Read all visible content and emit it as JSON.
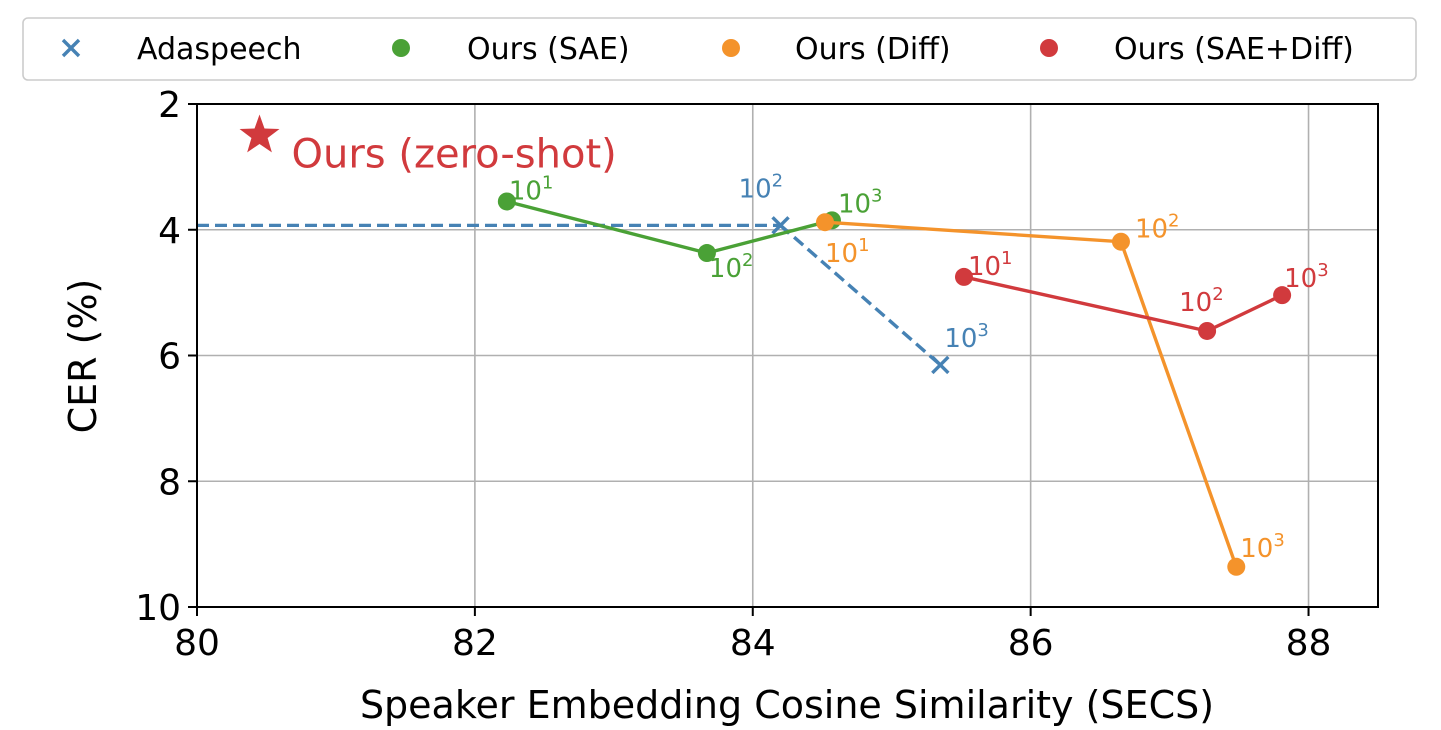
{
  "chart_data": {
    "type": "scatter",
    "xlabel": "Speaker Embedding Cosine Similarity (SECS)",
    "ylabel": "CER (%)",
    "xlim": [
      80,
      88.5
    ],
    "ylim": [
      10,
      2
    ],
    "y_inverted": true,
    "grid": true,
    "legend_position": "top",
    "xticks": [
      80,
      82,
      84,
      86,
      88
    ],
    "xtick_labels": [
      "80",
      "82",
      "84",
      "86",
      "88"
    ],
    "yticks": [
      2,
      4,
      6,
      8,
      10
    ],
    "ytick_labels": [
      "2",
      "4",
      "6",
      "8",
      "10"
    ],
    "reference_line": {
      "series": "Adaspeech",
      "y": 3.93,
      "x_range": [
        80,
        84.2
      ],
      "style": "dashed"
    },
    "series": [
      {
        "name": "Adaspeech",
        "legend_label": "Adaspeech",
        "color": "#4682b4",
        "marker": "x",
        "line_style": "dashed",
        "points": [
          {
            "x": 84.2,
            "y": 3.93,
            "label_base": "10",
            "label_exp": "2"
          },
          {
            "x": 85.35,
            "y": 6.15,
            "label_base": "10",
            "label_exp": "3"
          }
        ]
      },
      {
        "name": "Ours (SAE)",
        "legend_label": "Ours (SAE)",
        "color": "#4aa136",
        "marker": "circle",
        "line_style": "solid",
        "points": [
          {
            "x": 82.23,
            "y": 3.55,
            "label_base": "10",
            "label_exp": "1"
          },
          {
            "x": 83.67,
            "y": 4.37,
            "label_base": "10",
            "label_exp": "2"
          },
          {
            "x": 84.57,
            "y": 3.85,
            "label_base": "10",
            "label_exp": "3"
          }
        ]
      },
      {
        "name": "Ours (Diff)",
        "legend_label": "Ours (Diff)",
        "color": "#f4932b",
        "marker": "circle",
        "line_style": "solid",
        "points": [
          {
            "x": 84.52,
            "y": 3.88,
            "label_base": "10",
            "label_exp": "1"
          },
          {
            "x": 86.65,
            "y": 4.19,
            "label_base": "10",
            "label_exp": "2"
          },
          {
            "x": 87.48,
            "y": 9.36,
            "label_base": "10",
            "label_exp": "3"
          }
        ]
      },
      {
        "name": "Ours (SAE+Diff)",
        "legend_label": "Ours (SAE+Diff)",
        "color": "#d13a3d",
        "marker": "circle",
        "line_style": "solid",
        "points": [
          {
            "x": 85.52,
            "y": 4.75,
            "label_base": "10",
            "label_exp": "1"
          },
          {
            "x": 87.27,
            "y": 5.61,
            "label_base": "10",
            "label_exp": "2"
          },
          {
            "x": 87.81,
            "y": 5.04,
            "label_base": "10",
            "label_exp": "3"
          }
        ]
      }
    ],
    "zero_shot": {
      "label": "Ours (zero-shot)",
      "x": 80.45,
      "y": 2.5,
      "marker": "star",
      "color": "#d13a3d"
    }
  }
}
